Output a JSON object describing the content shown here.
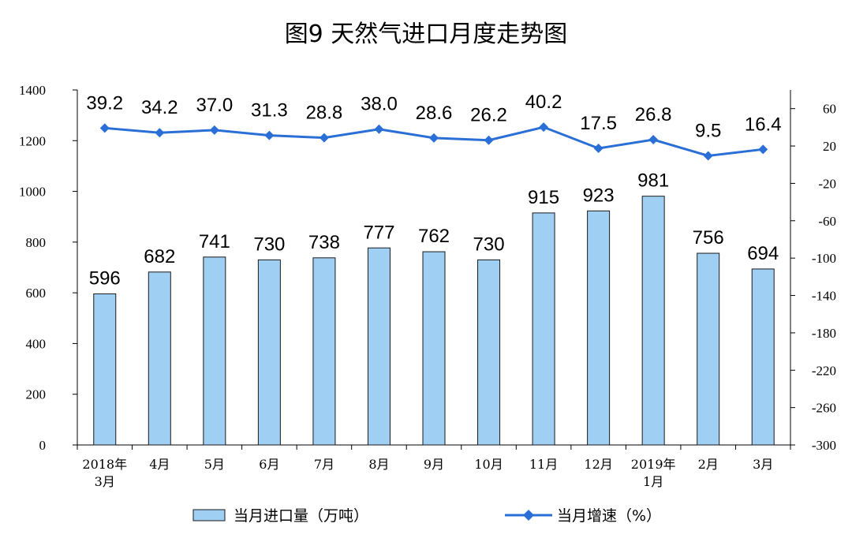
{
  "chart_data": {
    "type": "bar+line",
    "title": "图9  天然气进口月度走势图",
    "categories": [
      [
        "2018年",
        "3月"
      ],
      [
        "4月"
      ],
      [
        "5月"
      ],
      [
        "6月"
      ],
      [
        "7月"
      ],
      [
        "8月"
      ],
      [
        "9月"
      ],
      [
        "10月"
      ],
      [
        "11月"
      ],
      [
        "12月"
      ],
      [
        "2019年",
        "1月"
      ],
      [
        "2月"
      ],
      [
        "3月"
      ]
    ],
    "series": [
      {
        "name": "当月进口量（万吨）",
        "type": "bar",
        "axis": "left",
        "values": [
          596,
          682,
          741,
          730,
          738,
          777,
          762,
          730,
          915,
          923,
          981,
          756,
          694
        ],
        "labels": [
          "596",
          "682",
          "741",
          "730",
          "738",
          "777",
          "762",
          "730",
          "915",
          "923",
          "981",
          "756",
          "694"
        ]
      },
      {
        "name": "当月增速（%）",
        "type": "line",
        "axis": "right",
        "values": [
          39.2,
          34.2,
          37.0,
          31.3,
          28.8,
          38.0,
          28.6,
          26.2,
          40.2,
          17.5,
          26.8,
          9.5,
          16.4
        ],
        "labels": [
          "39.2",
          "34.2",
          "37.0",
          "31.3",
          "28.8",
          "38.0",
          "28.6",
          "26.2",
          "40.2",
          "17.5",
          "26.8",
          "9.5",
          "16.4"
        ]
      }
    ],
    "y_left": {
      "min": 0,
      "max": 1400,
      "step": 200,
      "ticks": [
        "0",
        "200",
        "400",
        "600",
        "800",
        "1000",
        "1200",
        "1400"
      ]
    },
    "y_right": {
      "min": -300,
      "max": 80,
      "ticks": [
        "-300",
        "-260",
        "-220",
        "-180",
        "-140",
        "-100",
        "-60",
        "-20",
        "20",
        "60"
      ]
    },
    "grid": false,
    "legend_position": "bottom",
    "colors": {
      "bar_fill": "#9fcff2",
      "bar_stroke": "#1a1a1a",
      "line": "#2a6fd6",
      "marker": "#2a6fd6",
      "axis": "#000000"
    }
  }
}
